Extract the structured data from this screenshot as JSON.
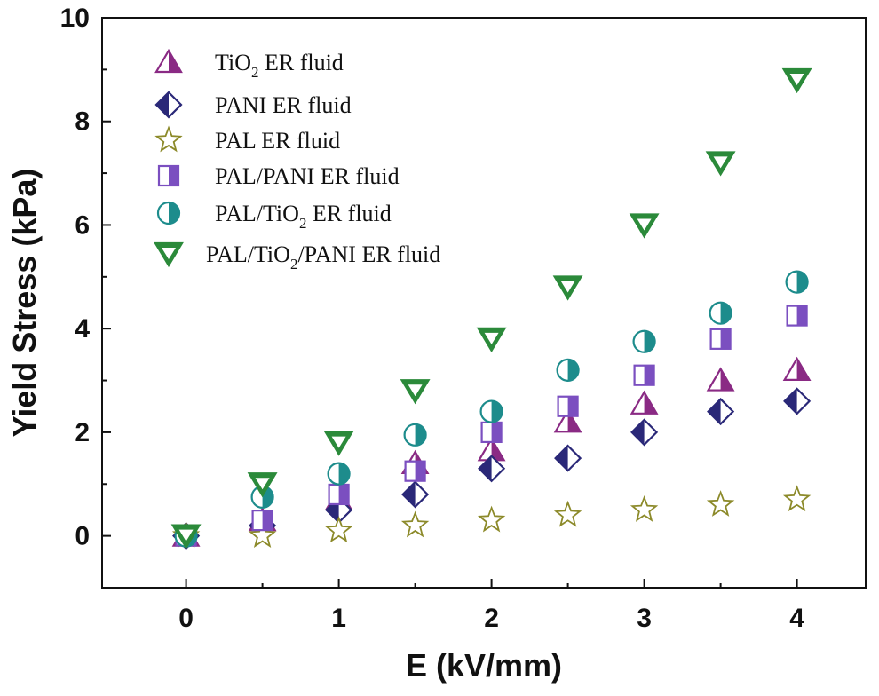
{
  "chart_data": {
    "type": "scatter",
    "xlabel": "E (kV/mm)",
    "ylabel": "Yield Stress (kPa)",
    "xlim": [
      -0.55,
      4.45
    ],
    "ylim": [
      -1,
      10
    ],
    "xticks": [
      0,
      1,
      2,
      3,
      4
    ],
    "yticks": [
      0,
      2,
      4,
      6,
      8,
      10
    ],
    "legend_position": "top-left",
    "series": [
      {
        "name": "TiO2 ER fluid",
        "label_main": "TiO",
        "label_sub": "2",
        "label_rest": " ER fluid",
        "marker": "half-triangle-up",
        "color": "#8a2a84",
        "x": [
          0,
          0.5,
          1,
          1.5,
          2,
          2.5,
          3,
          3.5,
          4
        ],
        "y": [
          0,
          0.3,
          0.7,
          1.4,
          1.65,
          2.2,
          2.55,
          3.0,
          3.2
        ]
      },
      {
        "name": "PANI ER fluid",
        "label_main": "PANI ER fluid",
        "label_sub": "",
        "label_rest": "",
        "marker": "half-diamond",
        "color": "#2a2878",
        "x": [
          0,
          0.5,
          1,
          1.5,
          2,
          2.5,
          3,
          3.5,
          4
        ],
        "y": [
          0,
          0.2,
          0.5,
          0.8,
          1.3,
          1.5,
          2.0,
          2.4,
          2.6
        ]
      },
      {
        "name": "PAL ER fluid",
        "label_main": "PAL ER fluid",
        "label_sub": "",
        "label_rest": "",
        "marker": "star",
        "color": "#8c8a2a",
        "x": [
          0,
          0.5,
          1,
          1.5,
          2,
          2.5,
          3,
          3.5,
          4
        ],
        "y": [
          0,
          0.0,
          0.1,
          0.2,
          0.3,
          0.4,
          0.5,
          0.6,
          0.7
        ]
      },
      {
        "name": "PAL/PANI ER fluid",
        "label_main": "PAL/PANI ER fluid",
        "label_sub": "",
        "label_rest": "",
        "marker": "half-square",
        "color": "#7b4fc0",
        "x": [
          0,
          0.5,
          1,
          1.5,
          2,
          2.5,
          3,
          3.5,
          4
        ],
        "y": [
          0,
          0.3,
          0.8,
          1.25,
          2.0,
          2.5,
          3.1,
          3.8,
          4.25
        ]
      },
      {
        "name": "PAL/TiO2 ER fluid",
        "label_main": "PAL/TiO",
        "label_sub": "2",
        "label_rest": " ER fluid",
        "marker": "half-circle",
        "color": "#1d8c8c",
        "x": [
          0,
          0.5,
          1,
          1.5,
          2,
          2.5,
          3,
          3.5,
          4
        ],
        "y": [
          0,
          0.75,
          1.2,
          1.95,
          2.4,
          3.2,
          3.75,
          4.3,
          4.9
        ]
      },
      {
        "name": "PAL/TiO2/PANI ER fluid",
        "label_main": "PAL/TiO",
        "label_sub": "2",
        "label_rest": "/PANI ER fluid",
        "marker": "half-triangle-down",
        "color": "#2b8a3a",
        "x": [
          0,
          0.5,
          1,
          1.5,
          2,
          2.5,
          3,
          3.5,
          4
        ],
        "y": [
          0,
          1.0,
          1.8,
          2.8,
          3.8,
          4.8,
          6.0,
          7.2,
          8.8
        ]
      }
    ]
  }
}
